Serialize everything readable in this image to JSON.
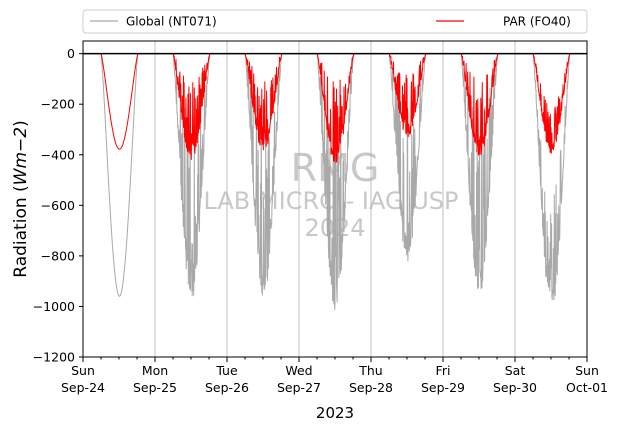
{
  "chart_data": {
    "type": "line",
    "xlabel": "2023",
    "ylabel_main": "Radiation (",
    "ylabel_math": "Wm−2",
    "ylabel_close": ")",
    "ylim": [
      -1200,
      50
    ],
    "xlim": [
      "2023-09-24 00:00",
      "2023-10-01 00:00"
    ],
    "yticks": [
      0,
      -200,
      -400,
      -600,
      -800,
      -1000,
      -1200
    ],
    "ytick_labels": [
      "0",
      "−200",
      "−400",
      "−600",
      "−800",
      "−1000",
      "−1200"
    ],
    "xticks": [
      {
        "day": "Sun",
        "date": "Sep-24"
      },
      {
        "day": "Mon",
        "date": "Sep-25"
      },
      {
        "day": "Tue",
        "date": "Sep-26"
      },
      {
        "day": "Wed",
        "date": "Sep-27"
      },
      {
        "day": "Thu",
        "date": "Sep-28"
      },
      {
        "day": "Fri",
        "date": "Sep-29"
      },
      {
        "day": "Sat",
        "date": "Sep-30"
      },
      {
        "day": "Sun",
        "date": "Oct-01"
      }
    ],
    "grid": "vertical",
    "legend_placement": "top",
    "watermark": {
      "line1": "RMG",
      "line2": "LAB MICRO - IAG USP",
      "line3": "2024"
    },
    "series": [
      {
        "name": "Global (NT071)",
        "color": "#a9a9a9",
        "daily_minimum": [
          -960,
          -980,
          -970,
          -1020,
          -830,
          -960,
          -1030
        ]
      },
      {
        "name": "PAR (FO40)",
        "color": "#ff0000",
        "daily_minimum": [
          -378,
          -420,
          -390,
          -435,
          -330,
          -410,
          -395
        ]
      }
    ],
    "reference_line": {
      "y": 0,
      "color": "#000000"
    }
  }
}
